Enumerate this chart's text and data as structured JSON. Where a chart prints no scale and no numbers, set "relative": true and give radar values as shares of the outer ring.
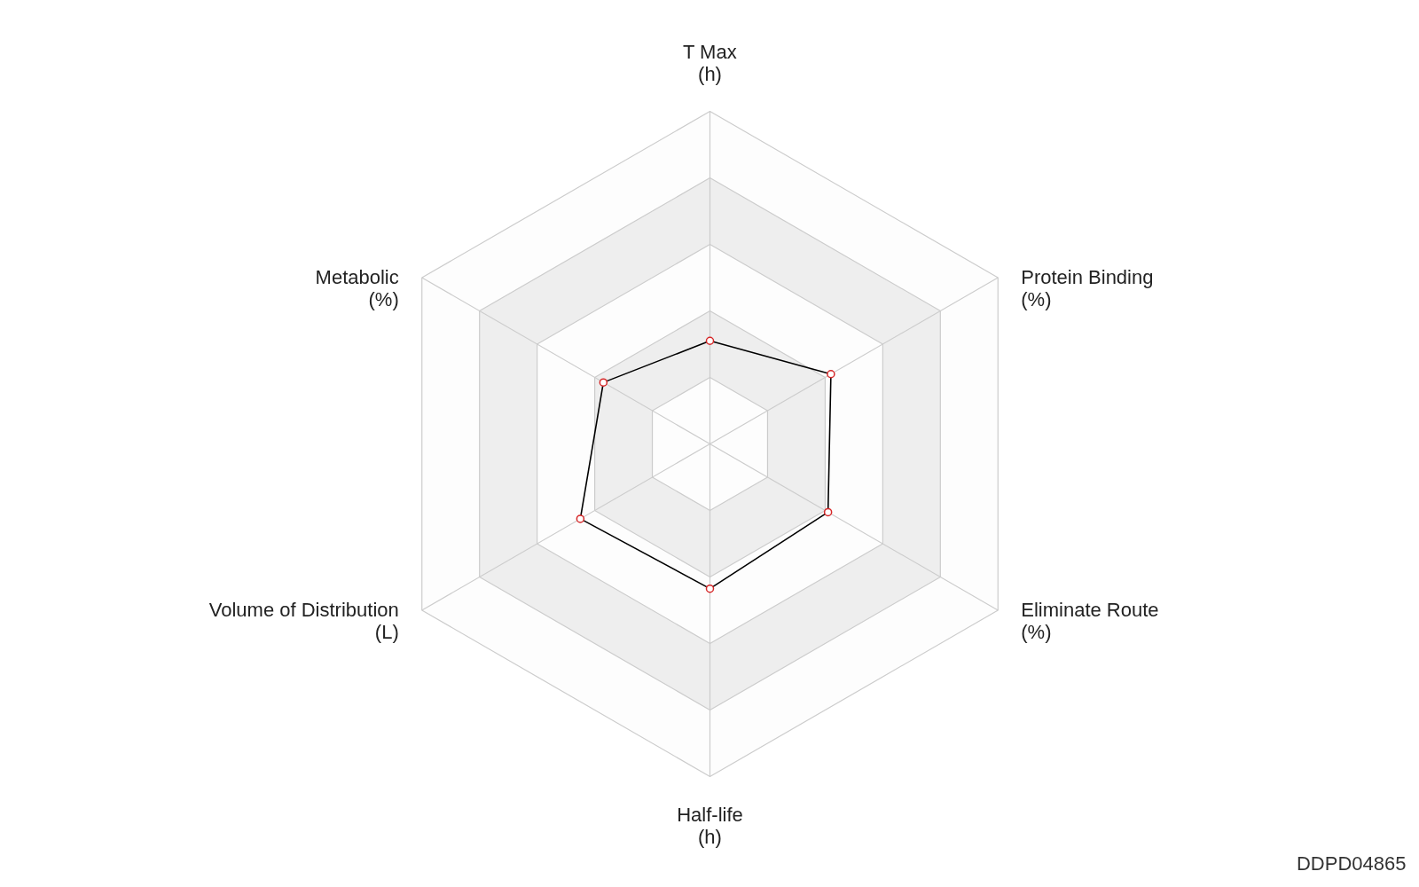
{
  "chart_data": {
    "type": "radar",
    "relative": true,
    "categories": [
      "T Max\n(h)",
      "Protein Binding\n(%)",
      "Eliminate Route\n(%)",
      "Half-life\n(h)",
      "Volume of Distribution\n(L)",
      "Metabolic\n(%)"
    ],
    "series": [
      {
        "color": "#000000",
        "values": [
          0.31,
          0.42,
          0.41,
          0.435,
          0.45,
          0.37
        ]
      }
    ],
    "marker": "circle",
    "grid": true,
    "annotations": [
      "DDPD04865"
    ]
  }
}
